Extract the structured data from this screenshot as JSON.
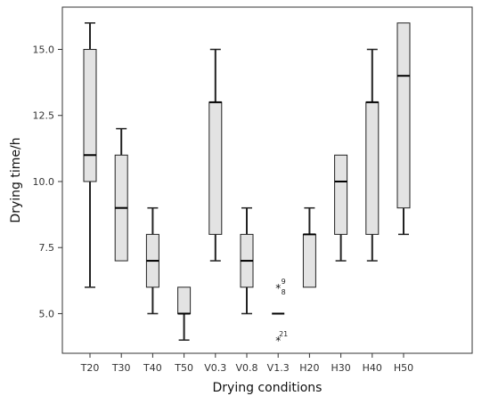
{
  "chart_data": {
    "type": "boxplot",
    "xlabel": "Drying conditions",
    "ylabel": "Drying time/h",
    "ylim": [
      3.5,
      16.6
    ],
    "yticks": [
      5.0,
      7.5,
      10.0,
      12.5,
      15.0
    ],
    "ytick_labels": [
      "5.0",
      "7.5",
      "10.0",
      "12.5",
      "15.0"
    ],
    "grid": false,
    "categories": [
      "T20",
      "T30",
      "T40",
      "T50",
      "V0.3",
      "V0.8",
      "V1.3",
      "H20",
      "H30",
      "H40",
      "H50"
    ],
    "boxes": [
      {
        "category": "T20",
        "min": 6,
        "q1": 10,
        "median": 11,
        "q3": 15,
        "max": 16
      },
      {
        "category": "T30",
        "min": 7,
        "q1": 7,
        "median": 9,
        "q3": 11,
        "max": 12
      },
      {
        "category": "T40",
        "min": 5,
        "q1": 6,
        "median": 7,
        "q3": 8,
        "max": 9
      },
      {
        "category": "T50",
        "min": 4,
        "q1": 5,
        "median": 5,
        "q3": 6,
        "max": 6
      },
      {
        "category": "V0.3",
        "min": 7,
        "q1": 8,
        "median": 13,
        "q3": 13,
        "max": 15
      },
      {
        "category": "V0.8",
        "min": 5,
        "q1": 6,
        "median": 7,
        "q3": 8,
        "max": 9
      },
      {
        "category": "V1.3",
        "min": 5,
        "q1": 5,
        "median": 5,
        "q3": 5,
        "max": 5
      },
      {
        "category": "H20",
        "min": 6,
        "q1": 6,
        "median": 8,
        "q3": 8,
        "max": 9
      },
      {
        "category": "H30",
        "min": 7,
        "q1": 8,
        "median": 10,
        "q3": 11,
        "max": 11
      },
      {
        "category": "H40",
        "min": 7,
        "q1": 8,
        "median": 13,
        "q3": 13,
        "max": 15
      },
      {
        "category": "H50",
        "min": 8,
        "q1": 9,
        "median": 14,
        "q3": 16,
        "max": 16
      }
    ],
    "outliers": [
      {
        "category": "V1.3",
        "value": 6,
        "labels": [
          "9",
          "8"
        ]
      },
      {
        "category": "V1.3",
        "value": 4,
        "labels": [
          "21"
        ]
      }
    ],
    "colors": {
      "box_fill": "#e3e3e3",
      "box_stroke": "#222222",
      "axis": "#333333"
    }
  }
}
